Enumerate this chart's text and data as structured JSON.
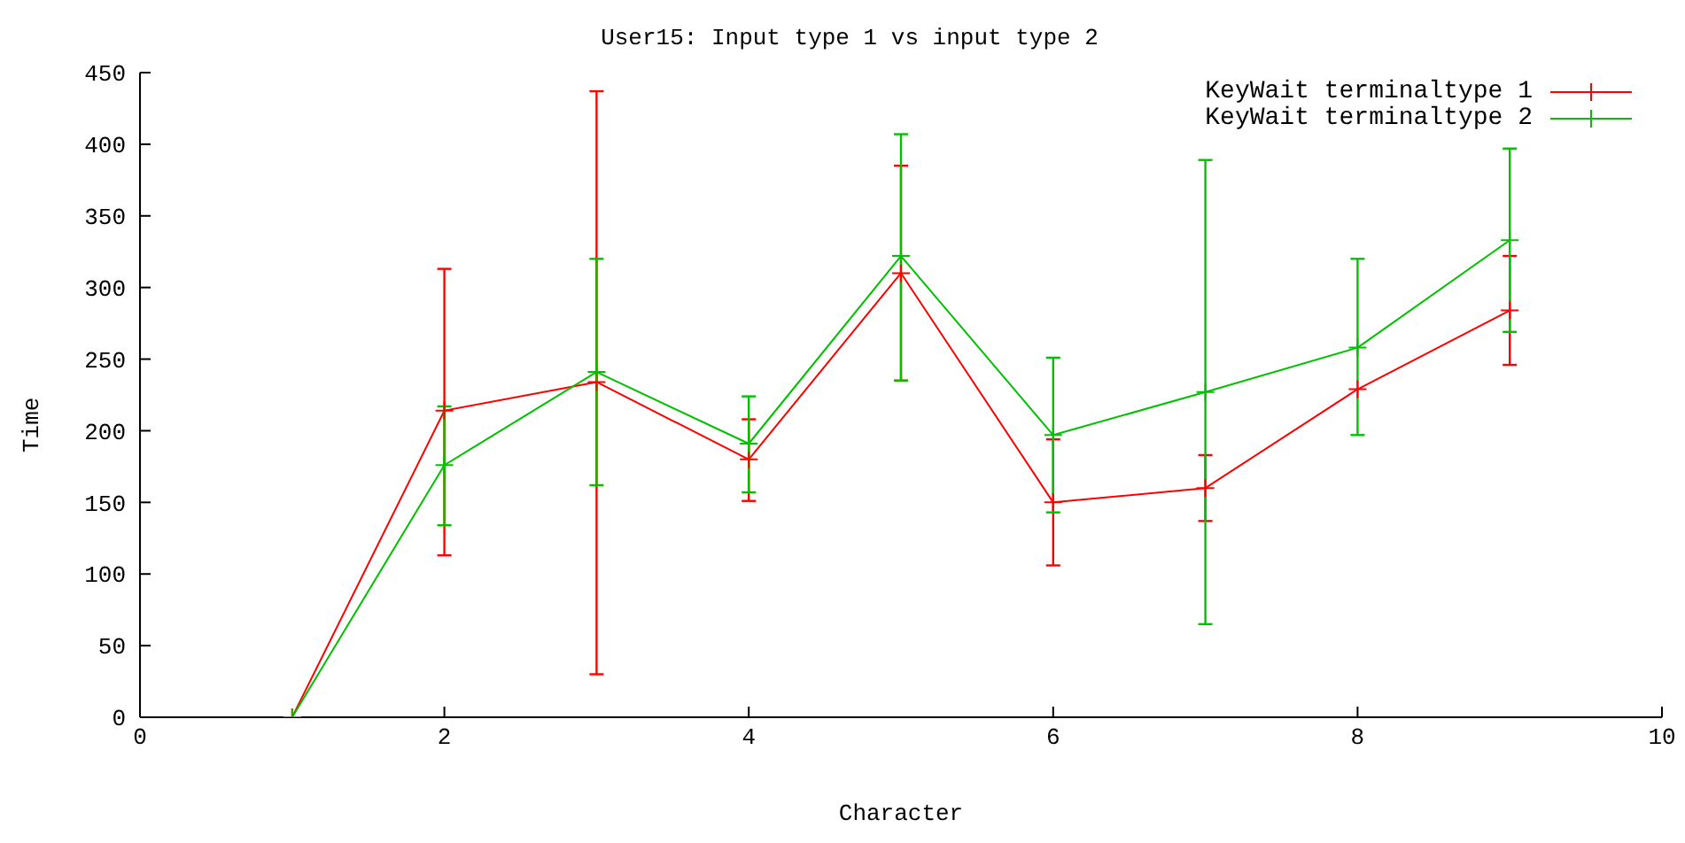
{
  "chart_data": {
    "type": "line",
    "title": "User15: Input type 1 vs input type 2",
    "xlabel": "Character",
    "ylabel": "Time",
    "x": [
      1,
      2,
      3,
      4,
      5,
      6,
      7,
      8,
      9
    ],
    "series": [
      {
        "name": "KeyWait terminaltype 1",
        "color": "#ff0000",
        "values": [
          0,
          214,
          234,
          180,
          310,
          150,
          160,
          229,
          284
        ],
        "errors": [
          0,
          [
            113,
            313
          ],
          [
            30,
            437
          ],
          [
            151,
            208
          ],
          [
            235,
            385
          ],
          [
            106,
            194
          ],
          [
            137,
            183
          ],
          null,
          [
            246,
            322
          ]
        ]
      },
      {
        "name": "KeyWait terminaltype 2",
        "color": "#00c000",
        "values": [
          0,
          176,
          241,
          191,
          322,
          197,
          227,
          258,
          333
        ],
        "errors": [
          0,
          [
            134,
            217
          ],
          [
            162,
            320
          ],
          [
            157,
            224
          ],
          [
            235,
            407
          ],
          [
            143,
            251
          ],
          [
            65,
            389
          ],
          [
            197,
            320
          ],
          [
            269,
            397
          ]
        ]
      }
    ],
    "xlim": [
      0,
      10
    ],
    "xticks": [
      0,
      2,
      4,
      6,
      8,
      10
    ],
    "ylim": [
      0,
      450
    ],
    "yticks": [
      0,
      50,
      100,
      150,
      200,
      250,
      300,
      350,
      400,
      450
    ],
    "grid": false,
    "legend": "top right",
    "marker": "cross",
    "line_style": "solid"
  }
}
